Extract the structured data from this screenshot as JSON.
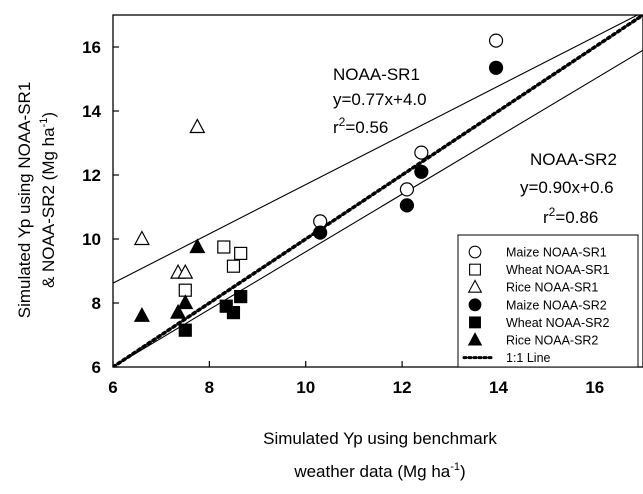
{
  "chart_data": {
    "type": "scatter",
    "xlabel_line1": "Simulated Yp using benchmark",
    "xlabel_line2": "weather data (Mg ha",
    "xlabel_sup": "-1",
    "xlabel_close": ")",
    "ylabel_line1": "Simulated Yp using NOAA-SR1",
    "ylabel_line2": "& NOAA-SR2 (Mg ha",
    "ylabel_sup": "-1",
    "ylabel_close": ")",
    "xlim": [
      6,
      17
    ],
    "ylim": [
      6,
      17
    ],
    "xticks": [
      6,
      8,
      10,
      12,
      14,
      16
    ],
    "yticks": [
      6,
      8,
      10,
      12,
      14,
      16
    ],
    "series": [
      {
        "name": "Maize NOAA-SR1",
        "marker": "circle",
        "filled": false,
        "points": [
          [
            10.3,
            10.55
          ],
          [
            12.1,
            11.55
          ],
          [
            12.4,
            12.7
          ],
          [
            13.95,
            16.2
          ]
        ]
      },
      {
        "name": "Wheat NOAA-SR1",
        "marker": "square",
        "filled": false,
        "points": [
          [
            7.5,
            8.4
          ],
          [
            8.3,
            9.75
          ],
          [
            8.5,
            9.15
          ],
          [
            8.65,
            9.55
          ]
        ]
      },
      {
        "name": "Rice NOAA-SR1",
        "marker": "triangle",
        "filled": false,
        "points": [
          [
            6.6,
            10.0
          ],
          [
            7.35,
            8.95
          ],
          [
            7.5,
            8.95
          ],
          [
            7.75,
            13.5
          ]
        ]
      },
      {
        "name": "Maize NOAA-SR2",
        "marker": "circle",
        "filled": true,
        "points": [
          [
            10.3,
            10.2
          ],
          [
            12.1,
            11.05
          ],
          [
            12.4,
            12.1
          ],
          [
            13.95,
            15.35
          ]
        ]
      },
      {
        "name": "Wheat NOAA-SR2",
        "marker": "square",
        "filled": true,
        "points": [
          [
            7.5,
            7.15
          ],
          [
            8.35,
            7.9
          ],
          [
            8.5,
            7.7
          ],
          [
            8.65,
            8.2
          ]
        ]
      },
      {
        "name": "Rice NOAA-SR2",
        "marker": "triangle",
        "filled": true,
        "points": [
          [
            6.6,
            7.6
          ],
          [
            7.35,
            7.7
          ],
          [
            7.5,
            8.0
          ],
          [
            7.75,
            9.75
          ]
        ]
      }
    ],
    "lines": [
      {
        "name": "1:1 Line",
        "style": "dotted",
        "slope": 1.0,
        "intercept": 0.0
      },
      {
        "name": "NOAA-SR1 fit",
        "style": "solid",
        "slope": 0.77,
        "intercept": 4.0
      },
      {
        "name": "NOAA-SR2 fit",
        "style": "solid",
        "slope": 0.9,
        "intercept": 0.6
      }
    ],
    "annotations": {
      "sr1_title": "NOAA-SR1",
      "sr1_eq": "y=0.77x+4.0",
      "sr1_r_prefix": "r",
      "sr1_r_sup": "2",
      "sr1_r_val": "=0.56",
      "sr2_title": "NOAA-SR2",
      "sr2_eq": "y=0.90x+0.6",
      "sr2_r_prefix": "r",
      "sr2_r_sup": "2",
      "sr2_r_val": "=0.86"
    },
    "legend": {
      "placement": "lower-right",
      "entries": [
        "Maize NOAA-SR1",
        "Wheat NOAA-SR1",
        "Rice NOAA-SR1",
        "Maize NOAA-SR2",
        "Wheat NOAA-SR2",
        "Rice NOAA-SR2",
        "1:1 Line"
      ]
    },
    "grid": false
  }
}
